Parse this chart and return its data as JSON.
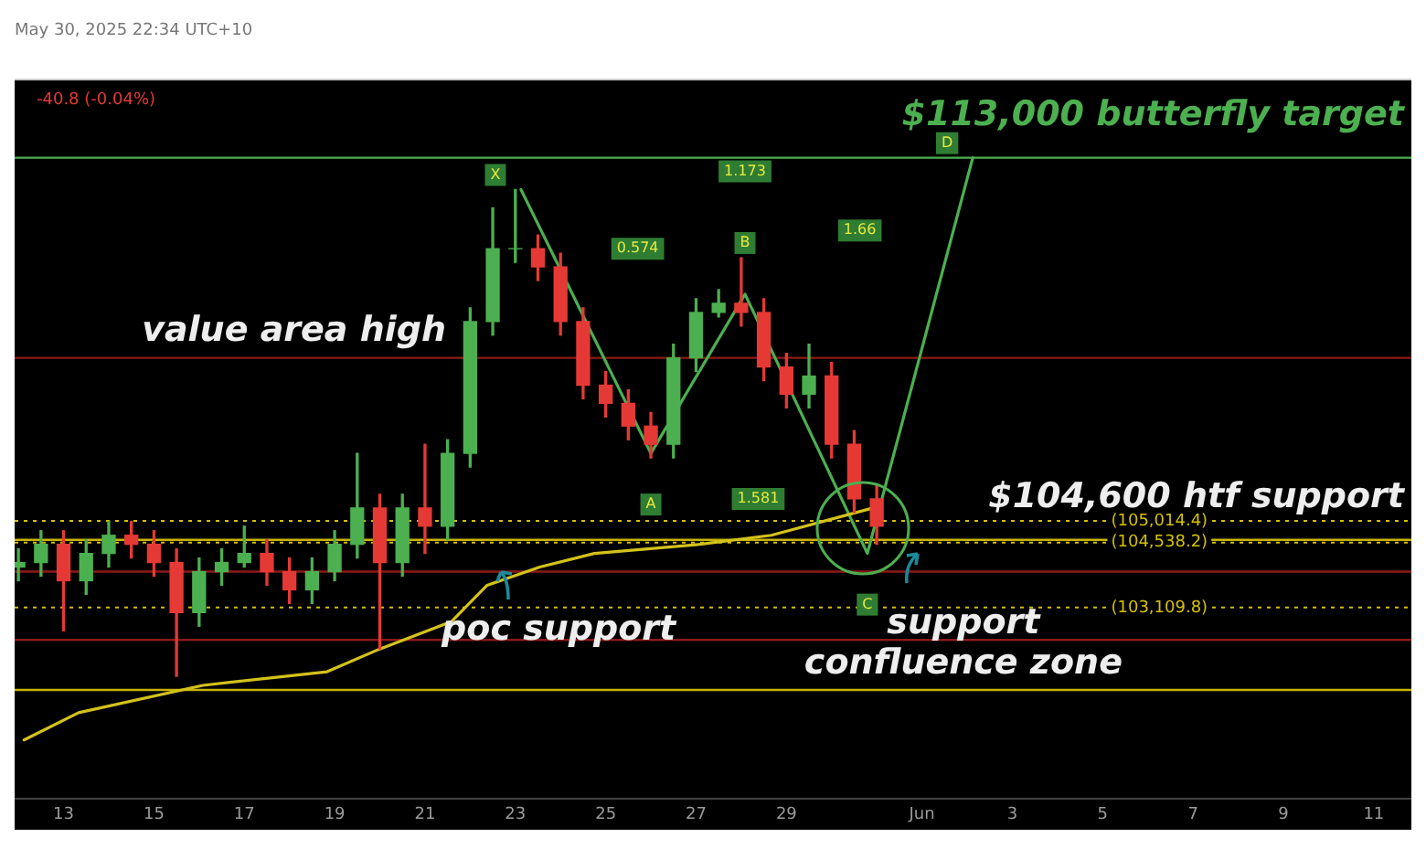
{
  "chart_data": {
    "type": "candlestick",
    "subtitle": "May 30, 2025 22:34 UTC+10",
    "x": [
      "2025-05-12T00:00",
      "2025-05-12T12:00",
      "2025-05-13T00:00",
      "2025-05-13T12:00",
      "2025-05-14T00:00",
      "2025-05-14T12:00",
      "2025-05-15T00:00",
      "2025-05-15T12:00",
      "2025-05-16T00:00",
      "2025-05-16T12:00",
      "2025-05-17T00:00",
      "2025-05-17T12:00",
      "2025-05-18T00:00",
      "2025-05-18T12:00",
      "2025-05-19T00:00",
      "2025-05-19T12:00",
      "2025-05-20T00:00",
      "2025-05-20T12:00",
      "2025-05-21T00:00",
      "2025-05-21T12:00",
      "2025-05-22T00:00",
      "2025-05-22T12:00",
      "2025-05-23T00:00",
      "2025-05-23T12:00",
      "2025-05-24T00:00",
      "2025-05-24T12:00",
      "2025-05-25T00:00",
      "2025-05-25T12:00",
      "2025-05-26T00:00",
      "2025-05-26T12:00",
      "2025-05-27T00:00",
      "2025-05-27T12:00",
      "2025-05-28T00:00",
      "2025-05-28T12:00",
      "2025-05-29T00:00",
      "2025-05-29T12:00",
      "2025-05-30T00:00",
      "2025-05-30T12:00",
      "2025-05-31T00:00"
    ],
    "ohlc": [
      [
        104000,
        104400,
        103700,
        104100
      ],
      [
        104100,
        104800,
        103800,
        104500
      ],
      [
        104500,
        104800,
        102600,
        103700
      ],
      [
        103700,
        104600,
        103400,
        104300
      ],
      [
        104300,
        105000,
        104000,
        104700
      ],
      [
        104700,
        105000,
        104200,
        104500
      ],
      [
        104500,
        104800,
        103800,
        104100
      ],
      [
        104100,
        104400,
        101600,
        103000
      ],
      [
        103000,
        104200,
        102700,
        103900
      ],
      [
        103900,
        104400,
        103600,
        104100
      ],
      [
        104100,
        104900,
        104000,
        104300
      ],
      [
        104300,
        104600,
        103600,
        103900
      ],
      [
        103900,
        104200,
        103200,
        103500
      ],
      [
        103500,
        104200,
        103200,
        103900
      ],
      [
        103900,
        104800,
        103700,
        104500
      ],
      [
        104500,
        106500,
        104200,
        105300
      ],
      [
        105300,
        105600,
        102200,
        104100
      ],
      [
        104100,
        105600,
        103800,
        105300
      ],
      [
        105300,
        106700,
        104300,
        104900
      ],
      [
        104900,
        106800,
        104600,
        106500
      ],
      [
        106500,
        109700,
        106200,
        109400
      ],
      [
        109400,
        111900,
        109100,
        111000
      ],
      [
        111000,
        112300,
        110700,
        111000
      ],
      [
        111000,
        111300,
        110300,
        110600
      ],
      [
        110600,
        110900,
        109100,
        109400
      ],
      [
        109400,
        109700,
        107700,
        108000
      ],
      [
        108000,
        108300,
        107300,
        107600
      ],
      [
        107600,
        107900,
        106800,
        107100
      ],
      [
        107100,
        107400,
        106400,
        106700
      ],
      [
        106700,
        108900,
        106400,
        108600
      ],
      [
        108600,
        109900,
        108300,
        109600
      ],
      [
        109600,
        110100,
        109500,
        109800
      ],
      [
        109800,
        110800,
        109300,
        109600
      ],
      [
        109600,
        109900,
        108100,
        108400
      ],
      [
        108400,
        108700,
        107500,
        107800
      ],
      [
        107800,
        108900,
        107500,
        108200
      ],
      [
        108200,
        108500,
        106400,
        106700
      ],
      [
        106700,
        107000,
        105200,
        105500
      ],
      [
        105500,
        105800,
        104500,
        104900
      ]
    ],
    "series": [
      {
        "type": "line",
        "color": "#d4c21a",
        "x": [
          "2025-05-12T03:00",
          "2025-05-13T08:00",
          "2025-05-16T02:00",
          "2025-05-18T20:00",
          "2025-05-20T00:00",
          "2025-05-21T14:00",
          "2025-05-22T09:00",
          "2025-05-23T13:00",
          "2025-05-24T18:00",
          "2025-05-27T02:00",
          "2025-05-28T16:00",
          "2025-05-30T22:00"
        ],
        "values": [
          100200,
          100800,
          101400,
          101700,
          102200,
          102800,
          103600,
          104000,
          104300,
          104500,
          104700,
          105300
        ]
      },
      {
        "type": "line",
        "color": "#4caf50",
        "x": [
          "2025-05-23T03:00",
          "2025-05-26T00:00",
          "2025-05-28T02:00",
          "2025-05-30T19:00",
          "2025-06-02T03:00"
        ],
        "values": [
          112300,
          106500,
          110000,
          104300,
          113000
        ]
      }
    ],
    "xlim": [
      "2025-05-11T22:00",
      "2025-06-11T20:00"
    ],
    "xticks": [
      {
        "value": "2025-05-13",
        "label": "13"
      },
      {
        "value": "2025-05-15",
        "label": "15"
      },
      {
        "value": "2025-05-17",
        "label": "17"
      },
      {
        "value": "2025-05-19",
        "label": "19"
      },
      {
        "value": "2025-05-21",
        "label": "21"
      },
      {
        "value": "2025-05-23",
        "label": "23"
      },
      {
        "value": "2025-05-25",
        "label": "25"
      },
      {
        "value": "2025-05-27",
        "label": "27"
      },
      {
        "value": "2025-05-29",
        "label": "29"
      },
      {
        "value": "2025-06-01",
        "label": "Jun"
      },
      {
        "value": "2025-06-03",
        "label": "3"
      },
      {
        "value": "2025-06-05",
        "label": "5"
      },
      {
        "value": "2025-06-07",
        "label": "7"
      },
      {
        "value": "2025-06-09",
        "label": "9"
      },
      {
        "value": "2025-06-11",
        "label": "11"
      }
    ],
    "ylim": [
      98900,
      114700
    ],
    "tick_labels": "x",
    "legend": false,
    "grid": false,
    "marker": "none",
    "ref_lines": [
      {
        "axis": "y",
        "value": 113000,
        "label": "$113,000 butterfly target",
        "color": "#4caf50",
        "line_style": "solid"
      },
      {
        "axis": "y",
        "value": 104600,
        "label": "$104,600 htf support",
        "color": "#c8b400",
        "line_style": "solid"
      },
      {
        "axis": "y",
        "value": 101300,
        "color": "#c8b400",
        "line_style": "solid"
      },
      {
        "axis": "y",
        "value": 108600,
        "color": "#8b1a1a",
        "line_style": "solid"
      },
      {
        "axis": "y",
        "value": 103900,
        "color": "#8b1a1a",
        "line_style": "solid"
      },
      {
        "axis": "y",
        "value": 102400,
        "color": "#8b1a1a",
        "line_style": "solid"
      },
      {
        "axis": "y",
        "value": 105014.4,
        "label": "(105,014.4)",
        "color": "#d4c000",
        "line_style": "dotted"
      },
      {
        "axis": "y",
        "value": 104538.2,
        "label": "(104,538.2)",
        "color": "#d4c000",
        "line_style": "dotted"
      },
      {
        "axis": "y",
        "value": 103109.8,
        "label": "(103,109.8)",
        "color": "#d4c000",
        "line_style": "dotted"
      }
    ],
    "annotations": [
      "-40.8 (-0.04%)",
      {
        "text": "X",
        "x": "2025-05-23T03:00",
        "y": 112300
      },
      {
        "text": "A",
        "x": "2025-05-26T00:00",
        "y": 106500
      },
      {
        "text": "B",
        "x": "2025-05-28T02:00",
        "y": 110000
      },
      {
        "text": "C",
        "x": "2025-05-30T19:00",
        "y": 104300
      },
      {
        "text": "D",
        "x": "2025-06-02T03:00",
        "y": 113000
      },
      {
        "text": "0.574",
        "x": "2025-05-25T17:00",
        "y": 111000
      },
      {
        "text": "1.173",
        "x": "2025-05-28T02:00",
        "y": 112700
      },
      {
        "text": "1.66",
        "x": "2025-05-30T15:00",
        "y": 111400
      },
      {
        "text": "1.581",
        "x": "2025-05-28T09:00",
        "y": 105500
      },
      "value area high",
      {
        "text": "poc support",
        "x": "2025-05-23T23:00",
        "y": 102600
      },
      {
        "text": "support confluence zone",
        "x": "2025-06-01T22:00",
        "y": 102300
      }
    ]
  }
}
